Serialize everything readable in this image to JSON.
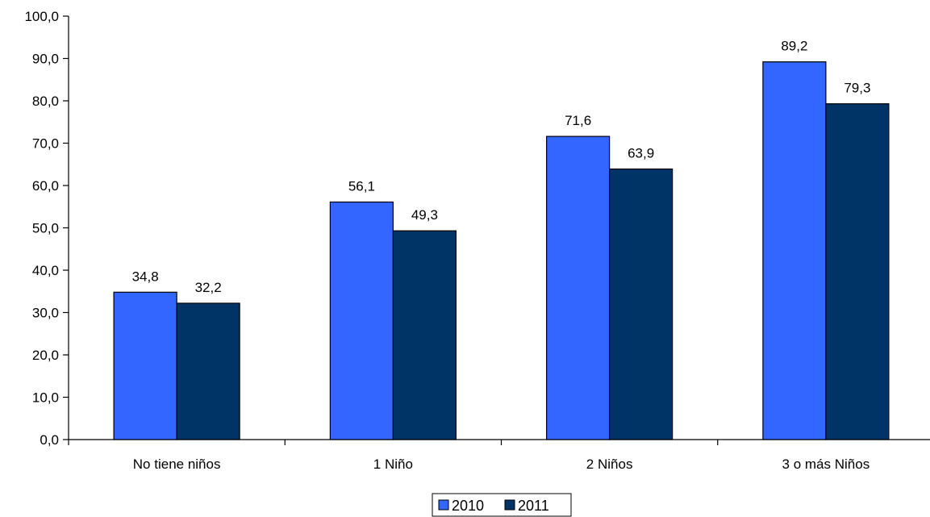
{
  "chart_data": {
    "type": "bar",
    "categories": [
      "No tiene niños",
      "1 Niño",
      "2 Niños",
      "3 o más Niños"
    ],
    "series": [
      {
        "name": "2010",
        "values": [
          34.8,
          56.1,
          71.6,
          89.2
        ],
        "color": "#3366FF"
      },
      {
        "name": "2011",
        "values": [
          32.2,
          49.3,
          63.9,
          79.3
        ],
        "color": "#003366"
      }
    ],
    "data_labels": [
      [
        "34,8",
        "56,1",
        "71,6",
        "89,2"
      ],
      [
        "32,2",
        "49,3",
        "63,9",
        "79,3"
      ]
    ],
    "yticks": [
      "0,0",
      "10,0",
      "20,0",
      "30,0",
      "40,0",
      "50,0",
      "60,0",
      "70,0",
      "80,0",
      "90,0",
      "100,0"
    ],
    "ylim": [
      0,
      100
    ],
    "title": "",
    "xlabel": "",
    "ylabel": "",
    "grid": false,
    "legend": {
      "position": "bottom",
      "entries": [
        "2010",
        "2011"
      ]
    }
  }
}
